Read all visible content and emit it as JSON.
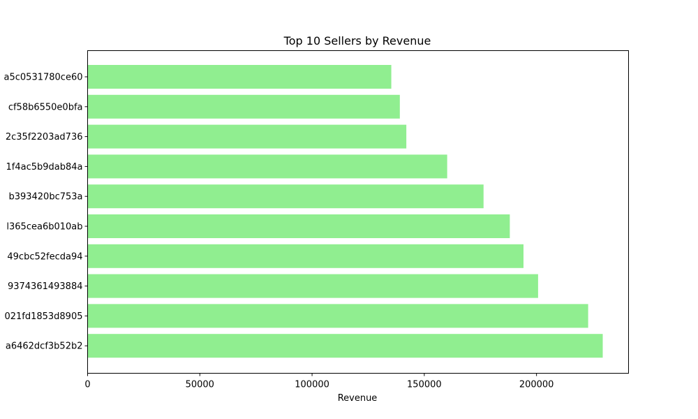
{
  "chart_data": {
    "type": "bar",
    "orientation": "horizontal",
    "title": "Top 10 Sellers by Revenue",
    "xlabel": "Revenue",
    "ylabel": "",
    "xlim": [
      0,
      241000
    ],
    "xticks": [
      0,
      50000,
      100000,
      150000,
      200000
    ],
    "xtick_labels": [
      "0",
      "50000",
      "100000",
      "150000",
      "200000"
    ],
    "categories": [
      "a5c0531780ce60",
      "cf58b6550e0bfa",
      "2c35f2203ad736",
      "1f4ac5b9dab84a",
      "b393420bc753a",
      "l365cea6b010ab",
      "49cbc52fecda94",
      "9374361493884",
      "021fd1853d8905",
      "a6462dcf3b52b2"
    ],
    "values": [
      135300,
      139100,
      142000,
      160200,
      176400,
      188100,
      194200,
      200700,
      223000,
      229500
    ],
    "bar_color": "#90ee90",
    "grid": false,
    "legend": "none"
  }
}
